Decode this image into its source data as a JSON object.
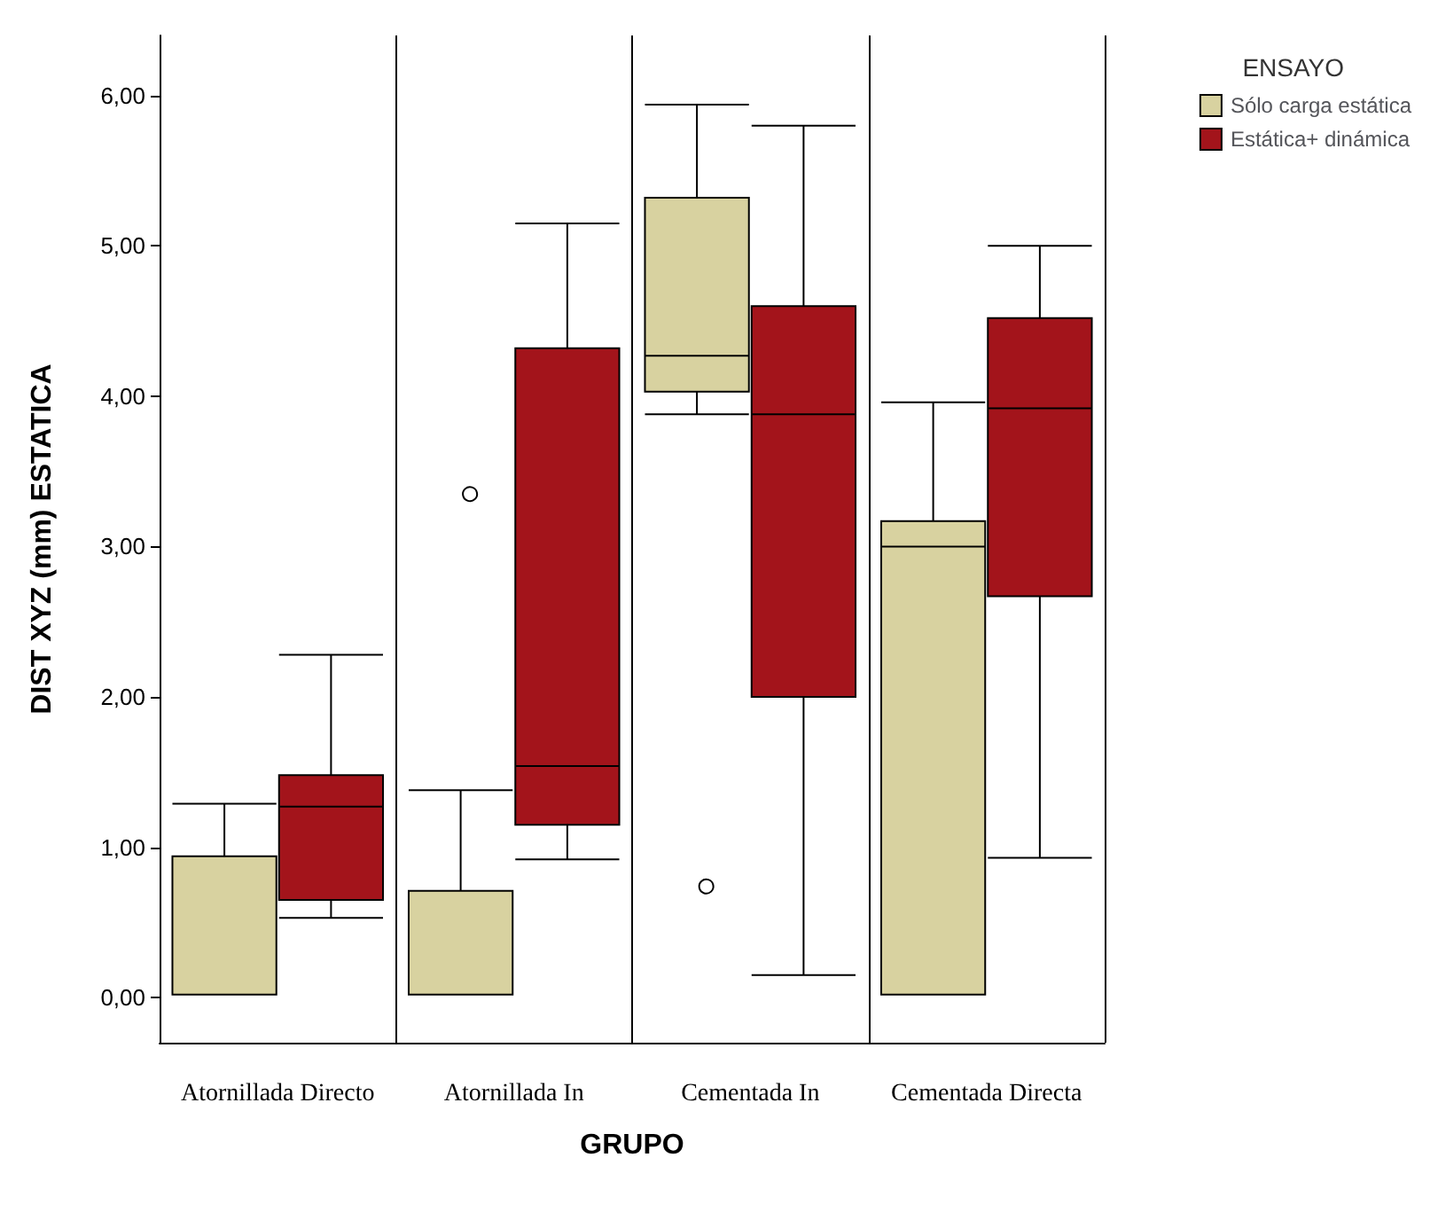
{
  "chart_data": {
    "type": "box",
    "xlabel": "GRUPO",
    "ylabel": "DIST XYZ (mm) ESTATICA",
    "legend_title": "ENSAYO",
    "legend": "top right",
    "grid": "x",
    "categories": [
      "Atornillada Directo",
      "Atornillada In",
      "Cementada In",
      "Cementada Directa"
    ],
    "ylim": [
      -0.3,
      6.4
    ],
    "yticks": [
      {
        "value": 0,
        "label": "0,00"
      },
      {
        "value": 1,
        "label": "1,00"
      },
      {
        "value": 2,
        "label": "2,00"
      },
      {
        "value": 3,
        "label": "3,00"
      },
      {
        "value": 4,
        "label": "4,00"
      },
      {
        "value": 5,
        "label": "5,00"
      },
      {
        "value": 6,
        "label": "6,00"
      }
    ],
    "series": [
      {
        "name": "Sólo carga estática",
        "color": "#d8d2a0",
        "boxes": [
          {
            "low": 0.02,
            "q1": 0.02,
            "median": 0.02,
            "q3": 0.94,
            "high": 1.29
          },
          {
            "low": 0.02,
            "q1": 0.02,
            "median": 0.02,
            "q3": 0.71,
            "high": 1.38,
            "outliers": [
              3.36
            ]
          },
          {
            "low": 3.88,
            "q1": 4.03,
            "median": 4.27,
            "q3": 5.32,
            "high": 5.94,
            "outliers": [
              0.75
            ]
          },
          {
            "low": 0.02,
            "q1": 0.02,
            "median": 3.0,
            "q3": 3.17,
            "high": 3.96
          }
        ]
      },
      {
        "name": "Estática+ dinámica",
        "color": "#a3141b",
        "boxes": [
          {
            "low": 0.53,
            "q1": 0.65,
            "median": 1.27,
            "q3": 1.48,
            "high": 2.28
          },
          {
            "low": 0.92,
            "q1": 1.15,
            "median": 1.54,
            "q3": 4.32,
            "high": 5.15
          },
          {
            "low": 0.15,
            "q1": 2.0,
            "median": 3.88,
            "q3": 4.6,
            "high": 5.8
          },
          {
            "low": 0.93,
            "q1": 2.67,
            "median": 3.92,
            "q3": 4.52,
            "high": 5.0
          }
        ]
      }
    ]
  }
}
